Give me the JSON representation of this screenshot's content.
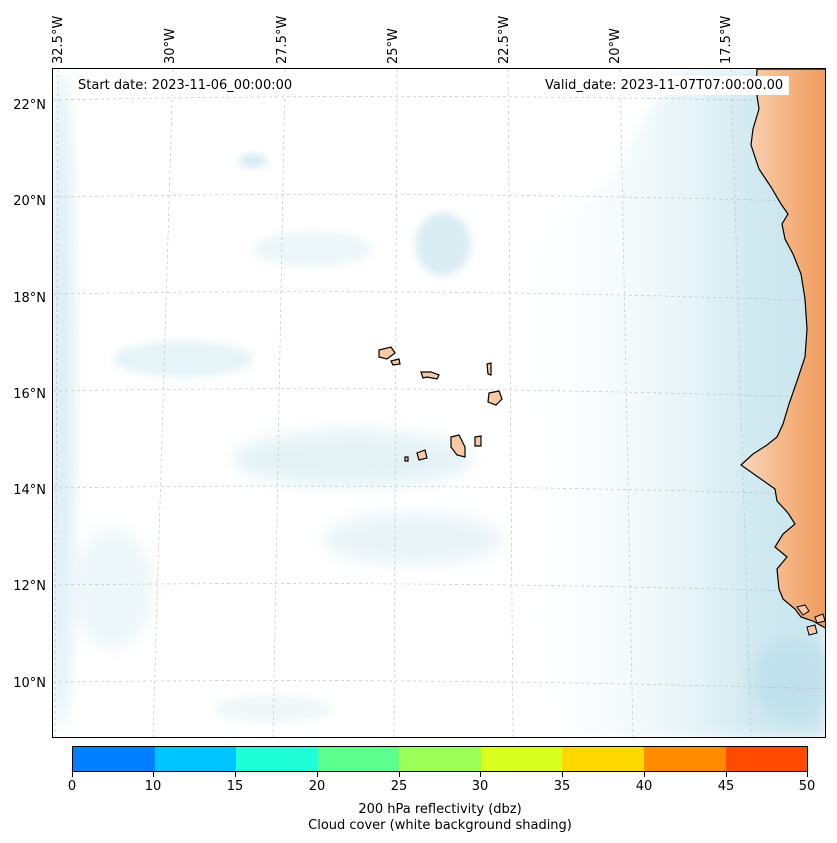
{
  "map": {
    "start_date": "Start date: 2023-11-06_00:00:00",
    "valid_date": "Valid_date: 2023-11-07T07:00:00.00",
    "longitude_labels": [
      "32.5°W",
      "30°W",
      "27.5°W",
      "25°W",
      "22.5°W",
      "20°W",
      "17.5°W"
    ],
    "latitude_labels": [
      "22°N",
      "20°N",
      "18°N",
      "16°N",
      "14°N",
      "12°N",
      "10°N"
    ],
    "land_color": "#f7c9a4",
    "land_hot_color": "#f2a46b",
    "cloud_color": "#cfe8f0",
    "cloud_light_color": "#e4f2f6"
  },
  "colorbar": {
    "title": "200 hPa reflectivity (dbz)",
    "subtitle": "Cloud cover (white background shading)",
    "ticks": [
      "0",
      "10",
      "15",
      "20",
      "25",
      "30",
      "35",
      "40",
      "45",
      "50"
    ],
    "colors": [
      "#0080ff",
      "#00c4ff",
      "#1effd8",
      "#5dff8c",
      "#9cff57",
      "#d8ff1e",
      "#ffd800",
      "#ff8c00",
      "#ff4a00"
    ]
  }
}
